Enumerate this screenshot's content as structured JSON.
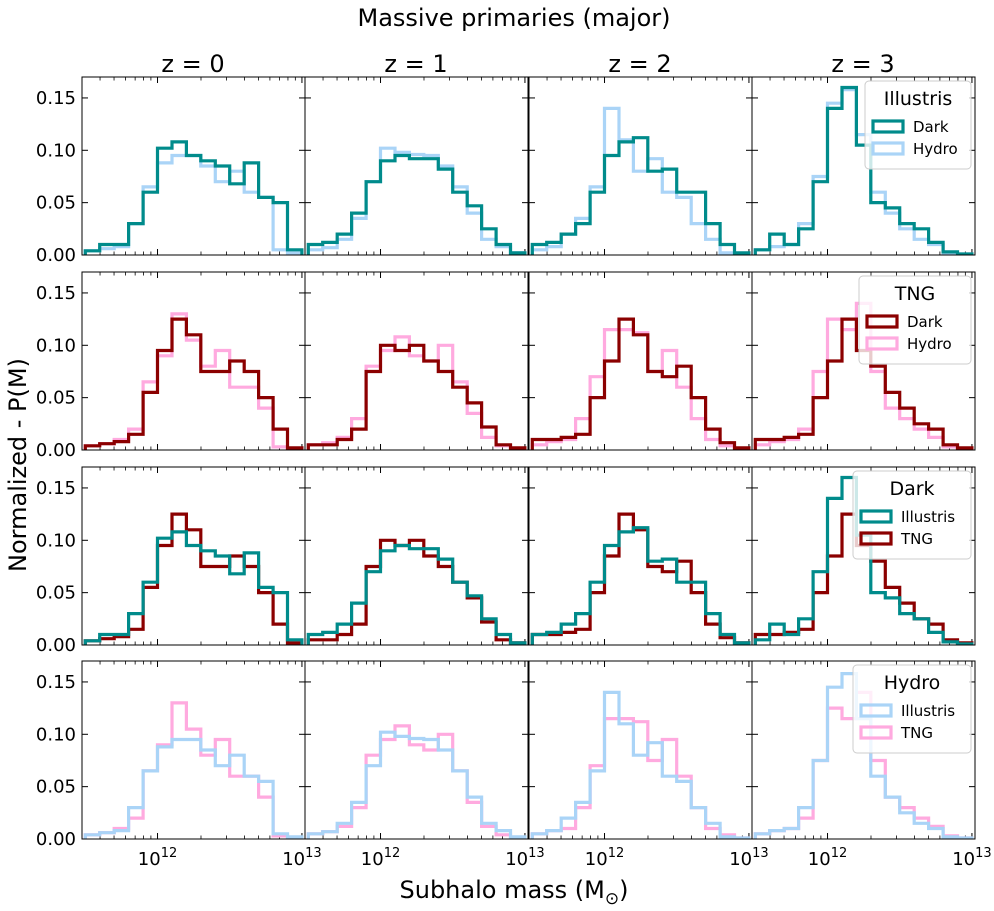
{
  "figure": {
    "title": "Massive primaries (major)",
    "xlabel": "Subhalo mass (M$_\\odot$)",
    "xlabel_display": "Subhalo mass (M",
    "xlabel_subscript": "⊙",
    "xlabel_close": ")",
    "ylabel": "Normalized - P(M)"
  },
  "columns": [
    "z = 0",
    "z = 1",
    "z = 2",
    "z = 3"
  ],
  "colors": {
    "illustris_dark": "#008b8b",
    "illustris_hydro": "#aad4f7",
    "tng_dark": "#8b0000",
    "tng_hydro": "#ffaadf"
  },
  "axes": {
    "xscale": "log",
    "xlim": [
      300000000000.0,
      10500000000000.0
    ],
    "ylim": [
      0,
      0.17
    ],
    "yticks": [
      "0.00",
      "0.05",
      "0.10",
      "0.15"
    ],
    "xticks": [
      {
        "value": 1000000000000.0,
        "base": "10",
        "exp": "12"
      },
      {
        "value": 10000000000000.0,
        "base": "10",
        "exp": "13"
      }
    ]
  },
  "legends": [
    {
      "title": "Illustris",
      "entries": [
        {
          "label": "Dark",
          "color": "#008b8b"
        },
        {
          "label": "Hydro",
          "color": "#aad4f7"
        }
      ]
    },
    {
      "title": "TNG",
      "entries": [
        {
          "label": "Dark",
          "color": "#8b0000"
        },
        {
          "label": "Hydro",
          "color": "#ffaadf"
        }
      ]
    },
    {
      "title": "Dark",
      "entries": [
        {
          "label": "Illustris",
          "color": "#008b8b"
        },
        {
          "label": "TNG",
          "color": "#8b0000"
        }
      ]
    },
    {
      "title": "Hydro",
      "entries": [
        {
          "label": "Illustris",
          "color": "#aad4f7"
        },
        {
          "label": "TNG",
          "color": "#ffaadf"
        }
      ]
    }
  ],
  "chart_data": {
    "type": "step-histogram",
    "bin_edges_log10": [
      11.5,
      11.6,
      11.7,
      11.8,
      11.9,
      12.0,
      12.1,
      12.2,
      12.3,
      12.4,
      12.5,
      12.6,
      12.7,
      12.8,
      12.9,
      13.0
    ],
    "histograms": {
      "illustris_dark": [
        [
          0.004,
          0.01,
          0.01,
          0.03,
          0.06,
          0.102,
          0.108,
          0.095,
          0.09,
          0.085,
          0.068,
          0.088,
          0.055,
          0.05,
          0.005
        ],
        [
          0.01,
          0.012,
          0.02,
          0.04,
          0.07,
          0.09,
          0.095,
          0.092,
          0.092,
          0.082,
          0.06,
          0.047,
          0.025,
          0.01,
          0.002
        ],
        [
          0.01,
          0.012,
          0.02,
          0.03,
          0.06,
          0.095,
          0.108,
          0.112,
          0.08,
          0.082,
          0.06,
          0.06,
          0.03,
          0.01,
          0.002
        ],
        [
          0.005,
          0.02,
          0.01,
          0.025,
          0.07,
          0.14,
          0.16,
          0.105,
          0.05,
          0.045,
          0.03,
          0.025,
          0.012,
          0.003,
          0.001
        ]
      ],
      "illustris_hydro": [
        [
          0.004,
          0.006,
          0.008,
          0.03,
          0.065,
          0.088,
          0.095,
          0.095,
          0.085,
          0.07,
          0.08,
          0.06,
          0.055,
          0.005,
          0.002
        ],
        [
          0.005,
          0.007,
          0.015,
          0.035,
          0.07,
          0.102,
          0.098,
          0.096,
          0.095,
          0.085,
          0.065,
          0.04,
          0.015,
          0.008,
          0.002
        ],
        [
          0.005,
          0.008,
          0.02,
          0.035,
          0.065,
          0.14,
          0.11,
          0.08,
          0.092,
          0.06,
          0.055,
          0.03,
          0.015,
          0.002,
          0.001
        ],
        [
          0.005,
          0.008,
          0.01,
          0.03,
          0.075,
          0.145,
          0.158,
          0.115,
          0.06,
          0.04,
          0.025,
          0.015,
          0.01,
          0.002,
          0.001
        ]
      ],
      "tng_dark": [
        [
          0.004,
          0.006,
          0.008,
          0.015,
          0.055,
          0.095,
          0.125,
          0.11,
          0.075,
          0.075,
          0.085,
          0.075,
          0.05,
          0.02,
          0.002
        ],
        [
          0.005,
          0.005,
          0.01,
          0.02,
          0.075,
          0.1,
          0.095,
          0.1,
          0.085,
          0.075,
          0.06,
          0.045,
          0.022,
          0.005,
          0.002
        ],
        [
          0.01,
          0.01,
          0.012,
          0.015,
          0.05,
          0.085,
          0.125,
          0.11,
          0.075,
          0.07,
          0.08,
          0.05,
          0.02,
          0.007,
          0.002
        ],
        [
          0.01,
          0.01,
          0.012,
          0.015,
          0.05,
          0.085,
          0.125,
          0.095,
          0.08,
          0.055,
          0.04,
          0.025,
          0.02,
          0.005,
          0.002
        ]
      ],
      "tng_hydro": [
        [
          0.004,
          0.006,
          0.01,
          0.02,
          0.065,
          0.09,
          0.13,
          0.105,
          0.08,
          0.095,
          0.06,
          0.06,
          0.04,
          0.003,
          0.001
        ],
        [
          0.005,
          0.007,
          0.012,
          0.03,
          0.08,
          0.095,
          0.108,
          0.09,
          0.085,
          0.1,
          0.065,
          0.035,
          0.012,
          0.004,
          0.001
        ],
        [
          0.005,
          0.008,
          0.01,
          0.03,
          0.07,
          0.115,
          0.115,
          0.112,
          0.075,
          0.095,
          0.06,
          0.03,
          0.01,
          0.004,
          0.001
        ],
        [
          0.005,
          0.008,
          0.01,
          0.02,
          0.075,
          0.125,
          0.115,
          0.14,
          0.075,
          0.04,
          0.03,
          0.02,
          0.012,
          0.003,
          0.001
        ]
      ]
    },
    "rows": [
      {
        "legend_title": "Illustris",
        "series": [
          {
            "name": "Dark",
            "key": "illustris_dark"
          },
          {
            "name": "Hydro",
            "key": "illustris_hydro"
          }
        ]
      },
      {
        "legend_title": "TNG",
        "series": [
          {
            "name": "Dark",
            "key": "tng_dark"
          },
          {
            "name": "Hydro",
            "key": "tng_hydro"
          }
        ]
      },
      {
        "legend_title": "Dark",
        "series": [
          {
            "name": "Illustris",
            "key": "illustris_dark"
          },
          {
            "name": "TNG",
            "key": "tng_dark"
          }
        ]
      },
      {
        "legend_title": "Hydro",
        "series": [
          {
            "name": "Illustris",
            "key": "illustris_hydro"
          },
          {
            "name": "TNG",
            "key": "tng_hydro"
          }
        ]
      }
    ]
  }
}
